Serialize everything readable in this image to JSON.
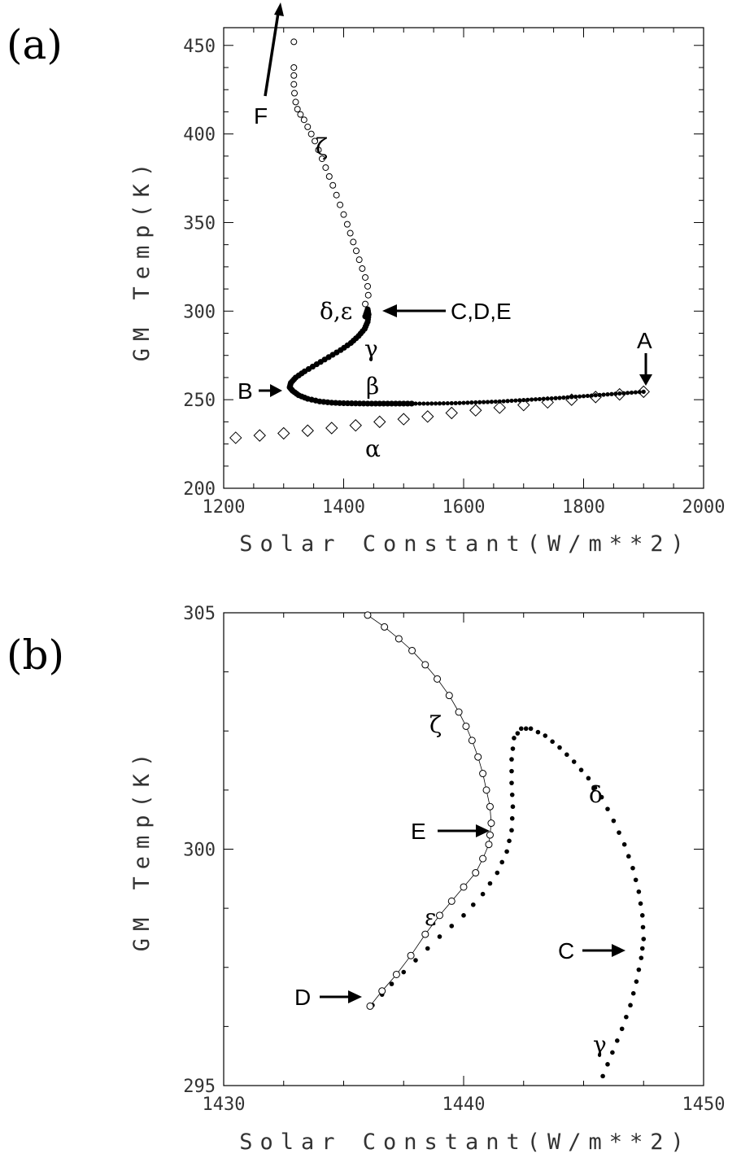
{
  "panels": [
    {
      "panel_label": "(a)",
      "xlabel": "Solar Constant(W/m**2)",
      "ylabel": "GM Temp(K)",
      "annotations": [
        "A",
        "B",
        "C,D,E",
        "F",
        "α",
        "β",
        "γ",
        "δ,ε",
        "ζ"
      ]
    },
    {
      "panel_label": "(b)",
      "xlabel": "Solar Constant(W/m**2)",
      "ylabel": "GM Temp(K)",
      "annotations": [
        "C",
        "D",
        "E",
        "γ",
        "δ",
        "ε",
        "ζ"
      ]
    }
  ],
  "chart_data": [
    {
      "type": "scatter",
      "xlim": [
        1200,
        2000
      ],
      "ylim": [
        200,
        460
      ],
      "xticks": [
        1200,
        1400,
        1600,
        1800,
        2000
      ],
      "yticks": [
        200,
        250,
        300,
        350,
        400,
        450
      ],
      "grid": false,
      "series": [
        {
          "marker": "diamond-open",
          "x": [
            1220,
            1260,
            1300,
            1340,
            1380,
            1420,
            1460,
            1500,
            1540,
            1580,
            1620,
            1660,
            1700,
            1740,
            1780,
            1820,
            1860,
            1900
          ],
          "y": [
            228.5,
            229.8,
            231.0,
            232.5,
            234.0,
            235.5,
            237.5,
            239.0,
            240.5,
            242.5,
            244.0,
            245.5,
            247.0,
            248.5,
            250.0,
            251.5,
            253.0,
            254.5
          ]
        },
        {
          "marker": "dot-filled",
          "x": [
            1900,
            1880,
            1860,
            1840,
            1820,
            1800,
            1780,
            1760,
            1740,
            1720,
            1700,
            1680,
            1660,
            1640,
            1620,
            1600,
            1580,
            1560,
            1540,
            1520,
            1500,
            1480,
            1460,
            1440,
            1420,
            1400,
            1380,
            1360,
            1340,
            1325,
            1315,
            1310,
            1312,
            1320,
            1335,
            1355,
            1375,
            1395,
            1412,
            1425,
            1435,
            1440,
            1441.5,
            1440,
            1436
          ],
          "y": [
            254.5,
            254.0,
            253.5,
            253.0,
            252.5,
            252.0,
            251.5,
            251.0,
            250.6,
            250.2,
            249.8,
            249.4,
            249.0,
            248.7,
            248.5,
            248.2,
            248.0,
            247.9,
            247.8,
            247.8,
            247.8,
            247.8,
            247.8,
            247.8,
            247.9,
            248.0,
            248.3,
            249.0,
            250.5,
            252.5,
            255.0,
            257.0,
            259.5,
            262.5,
            266.0,
            270.0,
            274.0,
            278.0,
            282.0,
            286.0,
            290.0,
            294.0,
            298.0,
            301.0,
            297.0
          ]
        },
        {
          "marker": "circle-open",
          "x": [
            1436,
            1441,
            1440,
            1436,
            1431,
            1426,
            1421,
            1416,
            1411,
            1406,
            1400,
            1394,
            1388,
            1382,
            1376,
            1370,
            1364,
            1358,
            1352,
            1346,
            1340,
            1334,
            1328,
            1323,
            1320,
            1318,
            1317,
            1317,
            1317,
            1317
          ],
          "y": [
            304.0,
            309.0,
            314.0,
            319.0,
            324.0,
            329.0,
            334.0,
            339.0,
            344.0,
            349.0,
            354.5,
            360.0,
            365.5,
            371.0,
            376.0,
            381.0,
            386.0,
            391.0,
            396.0,
            400.0,
            404.0,
            408.0,
            411.0,
            414.0,
            418.0,
            423.0,
            428.0,
            433.0,
            437.5,
            452.0
          ]
        }
      ]
    },
    {
      "type": "scatter",
      "xlim": [
        1430,
        1450
      ],
      "ylim": [
        295,
        305
      ],
      "xticks": [
        1430,
        1440,
        1450
      ],
      "yticks": [
        295,
        300,
        305
      ],
      "grid": false,
      "series": [
        {
          "marker": "dot-filled",
          "x": [
            1445.8,
            1446.2,
            1446.6,
            1446.95,
            1447.2,
            1447.4,
            1447.5,
            1447.45,
            1447.3,
            1447.05,
            1446.7,
            1446.25,
            1445.75,
            1445.2,
            1444.6,
            1444.0,
            1443.4,
            1442.8,
            1442.4,
            1442.1,
            1442.0,
            1442.0,
            1442.05,
            1442.0,
            1441.8,
            1441.4,
            1440.8,
            1440.0,
            1439.0,
            1438.0,
            1437.0,
            1436.2
          ],
          "y": [
            295.2,
            295.7,
            296.2,
            296.7,
            297.2,
            297.7,
            298.1,
            298.6,
            299.1,
            299.6,
            300.1,
            300.6,
            301.1,
            301.5,
            301.85,
            302.15,
            302.4,
            302.55,
            302.55,
            302.35,
            301.9,
            301.4,
            300.9,
            300.4,
            299.95,
            299.5,
            299.05,
            298.6,
            298.15,
            297.65,
            297.15,
            296.7
          ]
        },
        {
          "marker": "circle-open-line",
          "x": [
            1436.1,
            1436.6,
            1437.2,
            1437.8,
            1438.4,
            1439.0,
            1439.5,
            1440.0,
            1440.5,
            1440.8,
            1441.05,
            1441.1,
            1441.15,
            1441.1,
            1440.95,
            1440.8,
            1440.6,
            1440.35,
            1440.1,
            1439.8,
            1439.4,
            1438.9,
            1438.4,
            1437.85,
            1437.3,
            1436.7,
            1436.0
          ],
          "y": [
            296.68,
            297.0,
            297.35,
            297.75,
            298.2,
            298.6,
            298.9,
            299.2,
            299.5,
            299.8,
            300.1,
            300.3,
            300.55,
            300.9,
            301.25,
            301.6,
            301.95,
            302.3,
            302.6,
            302.9,
            303.25,
            303.6,
            303.9,
            304.2,
            304.45,
            304.7,
            304.95
          ]
        }
      ]
    }
  ]
}
